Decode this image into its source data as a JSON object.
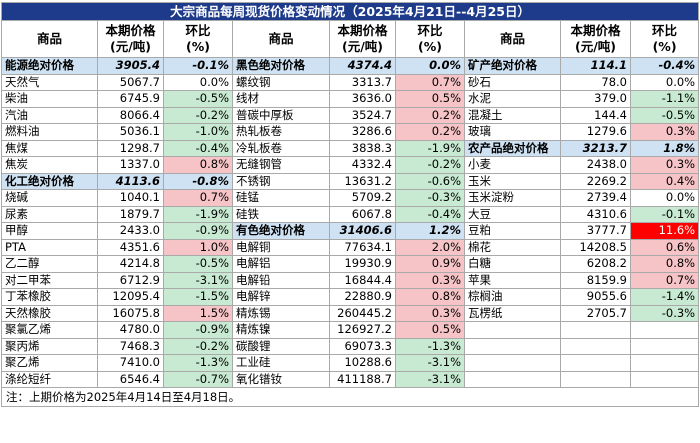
{
  "title": "大宗商品每周现货价格变动情况（2025年4月21日--4月25日）",
  "headers": {
    "name": "商品",
    "price": "本期价格\n(元/吨)",
    "change": "环比\n(%)"
  },
  "note": "注：上期价格为2025年4月14日至4月18日。",
  "colors": {
    "header_bg": "#1e3a8a",
    "group_bg": "#cfe2f3",
    "up_bg": "#f6c3c7",
    "down_bg": "#c8ead2",
    "hot_bg": "#ff0000"
  },
  "rows": [
    [
      {
        "n": "能源绝对价格",
        "v": "3905.4",
        "c": "-0.1%",
        "g": true
      },
      {
        "n": "黑色绝对价格",
        "v": "4374.4",
        "c": "0.0%",
        "g": true
      },
      {
        "n": "矿产绝对价格",
        "v": "114.1",
        "c": "-0.4%",
        "g": true
      }
    ],
    [
      {
        "n": "天然气",
        "v": "5067.7",
        "c": "0.0%"
      },
      {
        "n": "螺纹钢",
        "v": "3313.7",
        "c": "0.7%"
      },
      {
        "n": "砂石",
        "v": "78.0",
        "c": "0.0%"
      }
    ],
    [
      {
        "n": "柴油",
        "v": "6745.9",
        "c": "-0.5%"
      },
      {
        "n": "线材",
        "v": "3636.0",
        "c": "0.5%"
      },
      {
        "n": "水泥",
        "v": "379.0",
        "c": "-1.1%"
      }
    ],
    [
      {
        "n": "汽油",
        "v": "8066.4",
        "c": "-0.2%"
      },
      {
        "n": "普碳中厚板",
        "v": "3524.7",
        "c": "0.2%"
      },
      {
        "n": "混凝土",
        "v": "144.4",
        "c": "-0.5%"
      }
    ],
    [
      {
        "n": "燃料油",
        "v": "5036.1",
        "c": "-1.0%"
      },
      {
        "n": "热轧板卷",
        "v": "3286.6",
        "c": "0.2%"
      },
      {
        "n": "玻璃",
        "v": "1279.6",
        "c": "0.3%"
      }
    ],
    [
      {
        "n": "焦煤",
        "v": "1298.7",
        "c": "-0.4%"
      },
      {
        "n": "冷轧板卷",
        "v": "3838.3",
        "c": "-1.9%"
      },
      {
        "n": "农产品绝对价格",
        "v": "3213.7",
        "c": "1.8%",
        "g": true
      }
    ],
    [
      {
        "n": "焦炭",
        "v": "1337.0",
        "c": "0.8%"
      },
      {
        "n": "无缝钢管",
        "v": "4332.4",
        "c": "-0.2%"
      },
      {
        "n": "小麦",
        "v": "2438.0",
        "c": "0.3%"
      }
    ],
    [
      {
        "n": "化工绝对价格",
        "v": "4113.6",
        "c": "-0.8%",
        "g": true
      },
      {
        "n": "不锈钢",
        "v": "13631.2",
        "c": "-0.6%"
      },
      {
        "n": "玉米",
        "v": "2269.2",
        "c": "0.4%"
      }
    ],
    [
      {
        "n": "烧碱",
        "v": "1040.1",
        "c": "0.7%"
      },
      {
        "n": "硅锰",
        "v": "5709.2",
        "c": "-0.3%"
      },
      {
        "n": "玉米淀粉",
        "v": "2739.4",
        "c": "0.0%"
      }
    ],
    [
      {
        "n": "尿素",
        "v": "1879.7",
        "c": "-1.9%"
      },
      {
        "n": "硅铁",
        "v": "6067.8",
        "c": "-0.4%"
      },
      {
        "n": "大豆",
        "v": "4310.6",
        "c": "-0.1%"
      }
    ],
    [
      {
        "n": "甲醇",
        "v": "2433.0",
        "c": "-0.9%"
      },
      {
        "n": "有色绝对价格",
        "v": "31406.6",
        "c": "1.2%",
        "g": true
      },
      {
        "n": "豆粕",
        "v": "3777.7",
        "c": "11.6%",
        "hot": true
      }
    ],
    [
      {
        "n": "PTA",
        "v": "4351.6",
        "c": "1.0%"
      },
      {
        "n": "电解铜",
        "v": "77634.1",
        "c": "2.0%"
      },
      {
        "n": "棉花",
        "v": "14208.5",
        "c": "0.6%"
      }
    ],
    [
      {
        "n": "乙二醇",
        "v": "4214.8",
        "c": "-0.5%"
      },
      {
        "n": "电解铝",
        "v": "19930.9",
        "c": "0.9%"
      },
      {
        "n": "白糖",
        "v": "6208.2",
        "c": "0.8%"
      }
    ],
    [
      {
        "n": "对二甲苯",
        "v": "6712.9",
        "c": "-3.1%"
      },
      {
        "n": "电解铅",
        "v": "16844.4",
        "c": "0.3%"
      },
      {
        "n": "苹果",
        "v": "8159.9",
        "c": "0.7%"
      }
    ],
    [
      {
        "n": "丁苯橡胶",
        "v": "12095.4",
        "c": "-1.5%"
      },
      {
        "n": "电解锌",
        "v": "22880.9",
        "c": "0.8%"
      },
      {
        "n": "棕榈油",
        "v": "9055.6",
        "c": "-1.4%"
      }
    ],
    [
      {
        "n": "天然橡胶",
        "v": "16075.8",
        "c": "1.5%"
      },
      {
        "n": "精炼锡",
        "v": "260445.2",
        "c": "0.3%"
      },
      {
        "n": "瓦楞纸",
        "v": "2705.7",
        "c": "-0.3%"
      }
    ],
    [
      {
        "n": "聚氯乙烯",
        "v": "4780.0",
        "c": "-0.9%"
      },
      {
        "n": "精炼镍",
        "v": "126927.2",
        "c": "0.5%"
      },
      {
        "n": "",
        "v": "",
        "c": ""
      }
    ],
    [
      {
        "n": "聚丙烯",
        "v": "7468.3",
        "c": "-0.2%"
      },
      {
        "n": "碳酸锂",
        "v": "69073.3",
        "c": "-1.3%"
      },
      {
        "n": "",
        "v": "",
        "c": ""
      }
    ],
    [
      {
        "n": "聚乙烯",
        "v": "7410.0",
        "c": "-1.3%"
      },
      {
        "n": "工业硅",
        "v": "10288.6",
        "c": "-3.1%"
      },
      {
        "n": "",
        "v": "",
        "c": ""
      }
    ],
    [
      {
        "n": "涤纶短纤",
        "v": "6546.4",
        "c": "-0.7%"
      },
      {
        "n": "氧化镨钕",
        "v": "411188.7",
        "c": "-3.1%"
      },
      {
        "n": "",
        "v": "",
        "c": ""
      }
    ]
  ]
}
